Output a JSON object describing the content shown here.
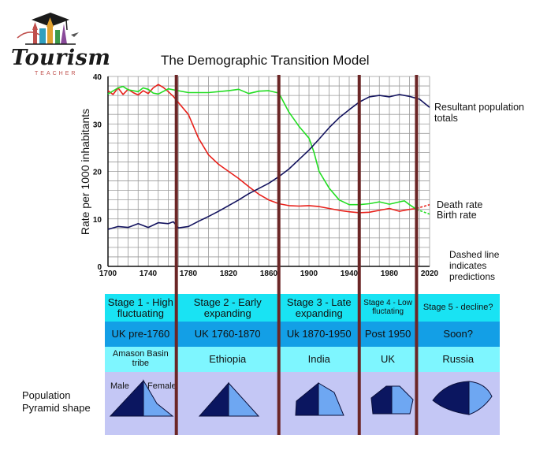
{
  "logo": {
    "word": "Tourism",
    "sub": "TEACHER"
  },
  "title": "The Demographic Transition Model",
  "y_axis_label": "Rate per 1000 inhabitants",
  "notes": {
    "population": "Resultant population totals",
    "death": "Death rate",
    "birth": "Birth rate",
    "dashed_line_1": "Dashed line",
    "dashed_line_2": "indicates",
    "dashed_line_3": "predictions"
  },
  "colors": {
    "population": "#12125e",
    "death": "#e8201a",
    "birth": "#22dd22",
    "stage_divider": "#6b2626",
    "row_stage": "#19e3f3",
    "row_period": "#139fe6",
    "row_example": "#7ef6ff",
    "row_pyramid": "#c4c7f5",
    "pyramid_dark": "#0b1660",
    "pyramid_light": "#6ea7f2"
  },
  "table": {
    "pyramid_row_label": [
      "Population",
      "Pyramid shape"
    ],
    "pyramid_male": "Male",
    "pyramid_female": "Female",
    "stages": [
      {
        "name": "Stage 1 - High fluctuating",
        "period": "UK pre-1760",
        "example": "Amason Basin tribe"
      },
      {
        "name": "Stage 2 - Early expanding",
        "period": "UK 1760-1870",
        "example": "Ethiopia"
      },
      {
        "name": "Stage 3 - Late expanding",
        "period": "Uk 1870-1950",
        "example": "India"
      },
      {
        "name": "Stage 4 - Low fluctating",
        "period": "Post 1950",
        "example": "UK"
      },
      {
        "name": "Stage 5 - decline?",
        "period": "Soon?",
        "example": "Russia"
      }
    ]
  },
  "chart_data": {
    "type": "line",
    "title": "The Demographic Transition Model",
    "ylabel": "Rate per 1000 inhabitants",
    "xlabel": "",
    "xlim": [
      1700,
      2020
    ],
    "ylim": [
      0,
      40
    ],
    "x_ticks": [
      1700,
      1740,
      1780,
      1820,
      1860,
      1900,
      1940,
      1980,
      2020
    ],
    "y_ticks": [
      0,
      10,
      20,
      30,
      40
    ],
    "grid": true,
    "stage_boundaries": [
      1768,
      1870,
      1950,
      2007
    ],
    "series": [
      {
        "name": "Death rate",
        "x": [
          1700,
          1705,
          1710,
          1715,
          1720,
          1725,
          1730,
          1735,
          1740,
          1745,
          1750,
          1755,
          1760,
          1765,
          1770,
          1780,
          1790,
          1800,
          1810,
          1820,
          1830,
          1840,
          1850,
          1860,
          1870,
          1880,
          1890,
          1900,
          1910,
          1920,
          1930,
          1940,
          1950,
          1960,
          1970,
          1980,
          1990,
          2000,
          2007
        ],
        "y": [
          37,
          36.2,
          37.6,
          36.2,
          37.3,
          36.6,
          36.1,
          37,
          36.4,
          37.6,
          38.3,
          37.7,
          36.8,
          35.8,
          34.5,
          32,
          27,
          23.5,
          21.5,
          20,
          18.5,
          16.8,
          15.2,
          14,
          13.2,
          12.8,
          12.7,
          12.8,
          12.6,
          12.2,
          11.8,
          11.5,
          11.3,
          11.4,
          11.8,
          12.2,
          11.6,
          12,
          12.2
        ],
        "predicted": {
          "x": [
            2007,
            2020
          ],
          "y": [
            12.2,
            13
          ]
        }
      },
      {
        "name": "Birth rate",
        "x": [
          1700,
          1710,
          1715,
          1720,
          1730,
          1735,
          1740,
          1745,
          1750,
          1760,
          1770,
          1780,
          1800,
          1820,
          1830,
          1840,
          1850,
          1860,
          1870,
          1875,
          1880,
          1885,
          1890,
          1900,
          1905,
          1910,
          1920,
          1930,
          1940,
          1950,
          1960,
          1970,
          1980,
          1990,
          1995,
          2000,
          2007
        ],
        "y": [
          36.3,
          37.6,
          37.9,
          37.2,
          36.8,
          37.6,
          37.3,
          36.5,
          36.3,
          37.4,
          37,
          36.6,
          36.6,
          37,
          37.3,
          36.4,
          36.9,
          37,
          36.5,
          34.5,
          32.5,
          31,
          29.5,
          27,
          24,
          20,
          16.5,
          14,
          13,
          13,
          13.2,
          13.6,
          13.1,
          13.6,
          13.8,
          13,
          12
        ],
        "predicted": {
          "x": [
            2007,
            2020
          ],
          "y": [
            12,
            11
          ]
        }
      },
      {
        "name": "Resultant population totals",
        "x": [
          1700,
          1710,
          1720,
          1730,
          1740,
          1750,
          1760,
          1765,
          1770,
          1780,
          1790,
          1800,
          1810,
          1820,
          1830,
          1840,
          1850,
          1860,
          1870,
          1880,
          1890,
          1900,
          1910,
          1920,
          1930,
          1940,
          1950,
          1960,
          1970,
          1980,
          1990,
          2000,
          2010,
          2020
        ],
        "y": [
          7.8,
          8.4,
          8.2,
          9,
          8.2,
          9.2,
          9,
          9.4,
          8.1,
          8.4,
          9.5,
          10.5,
          11.6,
          12.8,
          14,
          15.3,
          16.4,
          17.5,
          18.9,
          20.5,
          22.5,
          24.5,
          26.8,
          29.2,
          31.3,
          33,
          34.6,
          35.7,
          36,
          35.7,
          36.2,
          35.8,
          35.2,
          33.5
        ]
      }
    ]
  }
}
